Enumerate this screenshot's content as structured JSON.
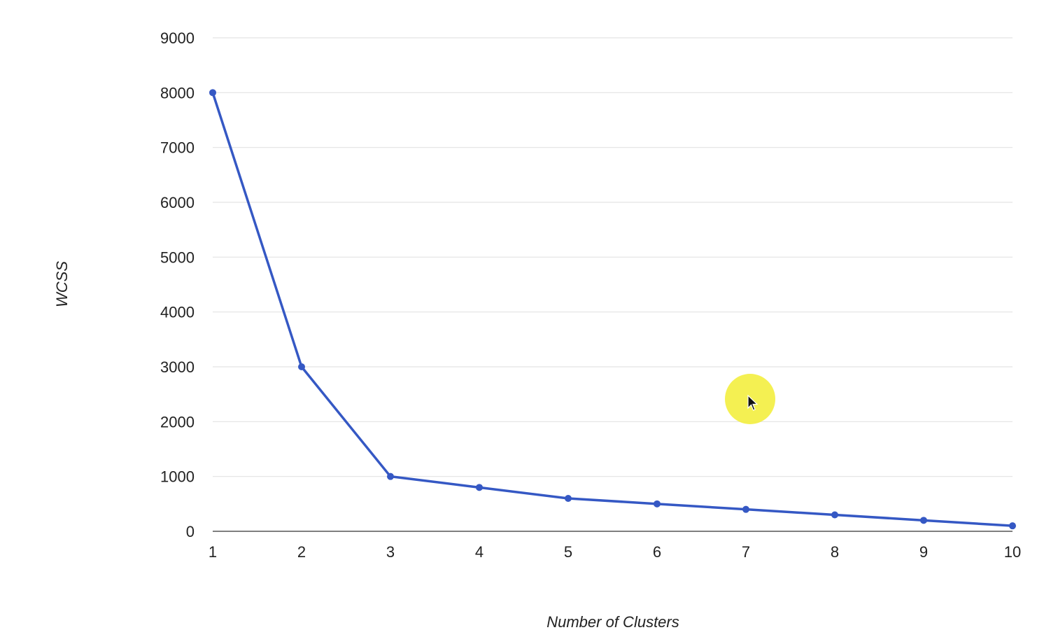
{
  "chart_data": {
    "type": "line",
    "xlabel": "Number of Clusters",
    "ylabel": "WCSS",
    "x": [
      1,
      2,
      3,
      4,
      5,
      6,
      7,
      8,
      9,
      10
    ],
    "x_tick_labels": [
      "1",
      "2",
      "3",
      "4",
      "5",
      "6",
      "7",
      "8",
      "9",
      "10"
    ],
    "y_tick_labels": [
      "0",
      "1000",
      "2000",
      "3000",
      "4000",
      "5000",
      "6000",
      "7000",
      "8000",
      "9000"
    ],
    "y_ticks": [
      0,
      1000,
      2000,
      3000,
      4000,
      5000,
      6000,
      7000,
      8000,
      9000
    ],
    "series": [
      {
        "values": [
          8000,
          3000,
          1000,
          800,
          600,
          500,
          400,
          300,
          200,
          100
        ],
        "color": "#3558c4"
      }
    ],
    "xlim": [
      1,
      10
    ],
    "ylim": [
      0,
      9000
    ],
    "grid": true,
    "legend": "none"
  },
  "colors": {
    "line": "#3558c4",
    "gridline": "#e3e3e3",
    "baseline": "#555555",
    "cursor_highlight": "#f3ee3f"
  }
}
